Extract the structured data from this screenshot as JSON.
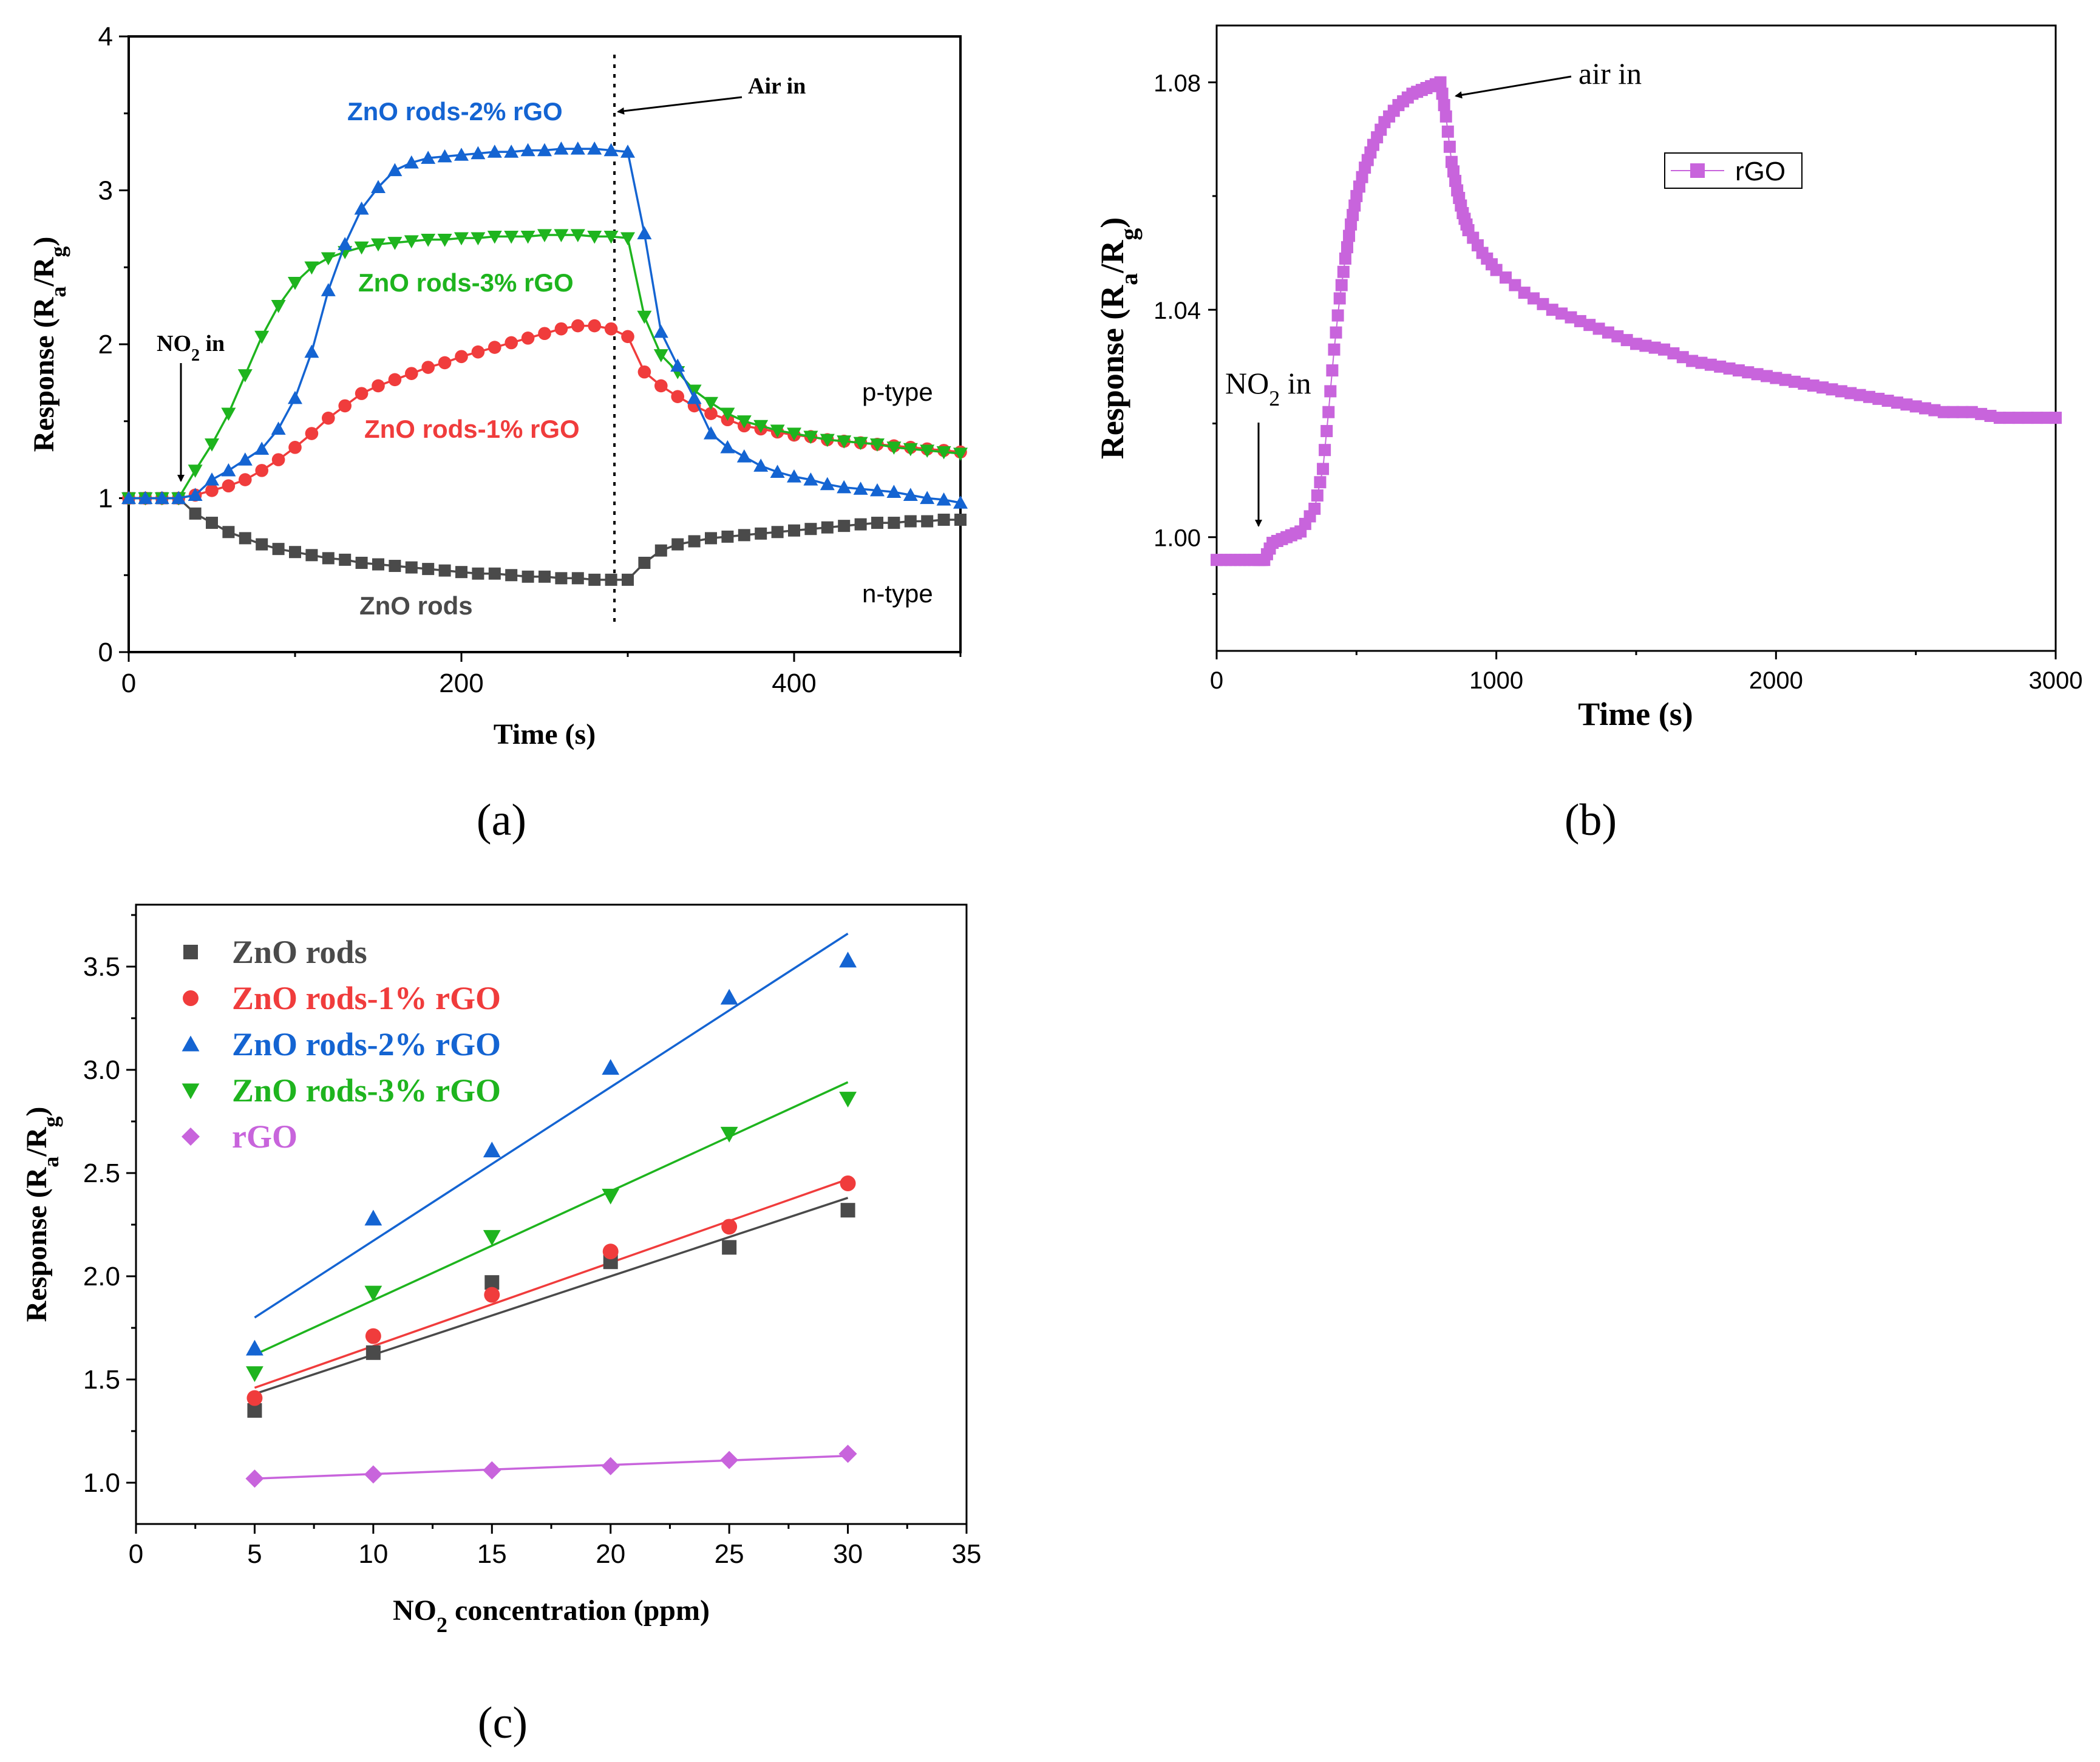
{
  "chart_data": [
    {
      "panel": "a",
      "panel_label": "(a)",
      "type": "line",
      "xlabel": "Time (s)",
      "ylabel": "Response (Ra/Rg)",
      "ylabel_parts": {
        "pre": "Response (R",
        "sub1": "a",
        "mid": "/R",
        "sub2": "g",
        "post": ")"
      },
      "xlim": [
        0,
        500
      ],
      "ylim": [
        0,
        4
      ],
      "xticks": [
        0,
        200,
        400
      ],
      "yticks": [
        0,
        1,
        2,
        3,
        4
      ],
      "vline_x": 292,
      "annotations": {
        "no2_in": {
          "pre": "NO",
          "sub": "2",
          "post": " in"
        },
        "air_in": "Air in",
        "p_type": "p-type",
        "n_type": "n-type"
      },
      "series": [
        {
          "name": "ZnO rods-2% rGO",
          "color": "#1464d2",
          "marker": "triangle-up",
          "x": [
            0,
            10,
            20,
            30,
            40,
            50,
            60,
            70,
            80,
            90,
            100,
            110,
            120,
            130,
            140,
            150,
            160,
            170,
            180,
            190,
            200,
            210,
            220,
            230,
            240,
            250,
            260,
            270,
            280,
            290,
            300,
            310,
            320,
            330,
            340,
            350,
            360,
            370,
            380,
            390,
            400,
            410,
            420,
            430,
            440,
            450,
            460,
            470,
            480,
            490,
            500
          ],
          "values": [
            1.0,
            1.0,
            1.0,
            1.0,
            1.02,
            1.12,
            1.18,
            1.25,
            1.32,
            1.45,
            1.65,
            1.95,
            2.35,
            2.65,
            2.88,
            3.02,
            3.13,
            3.18,
            3.21,
            3.22,
            3.23,
            3.24,
            3.25,
            3.25,
            3.26,
            3.26,
            3.27,
            3.27,
            3.27,
            3.26,
            3.25,
            2.72,
            2.08,
            1.86,
            1.65,
            1.42,
            1.33,
            1.27,
            1.21,
            1.17,
            1.14,
            1.12,
            1.09,
            1.07,
            1.06,
            1.05,
            1.04,
            1.02,
            1.0,
            0.99,
            0.97
          ]
        },
        {
          "name": "ZnO rods-3% rGO",
          "color": "#1eb41e",
          "marker": "triangle-down",
          "x": [
            0,
            10,
            20,
            30,
            40,
            50,
            60,
            70,
            80,
            90,
            100,
            110,
            120,
            130,
            140,
            150,
            160,
            170,
            180,
            190,
            200,
            210,
            220,
            230,
            240,
            250,
            260,
            270,
            280,
            290,
            300,
            310,
            320,
            330,
            340,
            350,
            360,
            370,
            380,
            390,
            400,
            410,
            420,
            430,
            440,
            450,
            460,
            470,
            480,
            490,
            500
          ],
          "values": [
            1.0,
            1.0,
            1.0,
            1.0,
            1.18,
            1.35,
            1.55,
            1.8,
            2.05,
            2.25,
            2.4,
            2.5,
            2.56,
            2.6,
            2.63,
            2.65,
            2.66,
            2.67,
            2.68,
            2.68,
            2.69,
            2.69,
            2.7,
            2.7,
            2.7,
            2.71,
            2.71,
            2.71,
            2.7,
            2.7,
            2.69,
            2.18,
            1.93,
            1.82,
            1.7,
            1.62,
            1.55,
            1.5,
            1.47,
            1.44,
            1.42,
            1.4,
            1.38,
            1.37,
            1.36,
            1.35,
            1.33,
            1.32,
            1.31,
            1.3,
            1.29
          ]
        },
        {
          "name": "ZnO rods-1% rGO",
          "color": "#f03c3c",
          "marker": "circle",
          "x": [
            0,
            10,
            20,
            30,
            40,
            50,
            60,
            70,
            80,
            90,
            100,
            110,
            120,
            130,
            140,
            150,
            160,
            170,
            180,
            190,
            200,
            210,
            220,
            230,
            240,
            250,
            260,
            270,
            280,
            290,
            300,
            310,
            320,
            330,
            340,
            350,
            360,
            370,
            380,
            390,
            400,
            410,
            420,
            430,
            440,
            450,
            460,
            470,
            480,
            490,
            500
          ],
          "values": [
            1.0,
            1.0,
            1.0,
            1.0,
            1.02,
            1.05,
            1.08,
            1.12,
            1.18,
            1.25,
            1.33,
            1.42,
            1.52,
            1.6,
            1.68,
            1.73,
            1.77,
            1.81,
            1.85,
            1.88,
            1.92,
            1.95,
            1.98,
            2.01,
            2.04,
            2.07,
            2.1,
            2.12,
            2.12,
            2.1,
            2.05,
            1.82,
            1.73,
            1.66,
            1.6,
            1.55,
            1.51,
            1.47,
            1.45,
            1.43,
            1.41,
            1.4,
            1.38,
            1.37,
            1.36,
            1.35,
            1.34,
            1.33,
            1.32,
            1.31,
            1.3
          ]
        },
        {
          "name": "ZnO rods",
          "color": "#4a4a4a",
          "marker": "square",
          "x": [
            0,
            10,
            20,
            30,
            40,
            50,
            60,
            70,
            80,
            90,
            100,
            110,
            120,
            130,
            140,
            150,
            160,
            170,
            180,
            190,
            200,
            210,
            220,
            230,
            240,
            250,
            260,
            270,
            280,
            290,
            300,
            310,
            320,
            330,
            340,
            350,
            360,
            370,
            380,
            390,
            400,
            410,
            420,
            430,
            440,
            450,
            460,
            470,
            480,
            490,
            500
          ],
          "values": [
            1.0,
            1.0,
            1.0,
            1.0,
            0.9,
            0.84,
            0.78,
            0.74,
            0.7,
            0.67,
            0.65,
            0.63,
            0.61,
            0.6,
            0.58,
            0.57,
            0.56,
            0.55,
            0.54,
            0.53,
            0.52,
            0.51,
            0.51,
            0.5,
            0.49,
            0.49,
            0.48,
            0.48,
            0.47,
            0.47,
            0.47,
            0.58,
            0.66,
            0.7,
            0.72,
            0.74,
            0.75,
            0.76,
            0.77,
            0.78,
            0.79,
            0.8,
            0.81,
            0.82,
            0.83,
            0.84,
            0.84,
            0.85,
            0.85,
            0.86,
            0.86
          ]
        }
      ]
    },
    {
      "panel": "b",
      "panel_label": "(b)",
      "type": "line",
      "xlabel": "Time (s)",
      "ylabel": "Response (Ra/Rg)",
      "ylabel_parts": {
        "pre": "Response (R",
        "sub1": "a",
        "mid": "/R",
        "sub2": "g",
        "post": ")"
      },
      "xlim": [
        0,
        3000
      ],
      "ylim": [
        0.98,
        1.09
      ],
      "xticks": [
        0,
        1000,
        2000,
        3000
      ],
      "yticks": [
        1.0,
        1.04,
        1.08
      ],
      "ytick_labels": [
        "1.00",
        "1.04",
        "1.08"
      ],
      "annotations": {
        "no2_in": {
          "pre": "NO",
          "sub": "2",
          "post": " in"
        },
        "air_in": "air in"
      },
      "legend": "rGO",
      "series": [
        {
          "name": "rGO",
          "color": "#c864dc",
          "marker": "square",
          "x": [
            0,
            50,
            100,
            150,
            170,
            200,
            250,
            300,
            350,
            380,
            400,
            420,
            440,
            460,
            480,
            500,
            530,
            560,
            600,
            650,
            700,
            750,
            800,
            820,
            840,
            860,
            880,
            900,
            950,
            1000,
            1100,
            1200,
            1300,
            1400,
            1500,
            1600,
            1700,
            1800,
            1900,
            2000,
            2100,
            2200,
            2300,
            2400,
            2500,
            2600,
            2700,
            2800,
            2900,
            3000
          ],
          "values": [
            0.996,
            0.996,
            0.996,
            0.996,
            0.996,
            0.999,
            1.0,
            1.001,
            1.005,
            1.012,
            1.022,
            1.033,
            1.042,
            1.049,
            1.055,
            1.06,
            1.065,
            1.069,
            1.073,
            1.076,
            1.078,
            1.079,
            1.08,
            1.074,
            1.066,
            1.061,
            1.057,
            1.054,
            1.05,
            1.047,
            1.043,
            1.04,
            1.038,
            1.036,
            1.034,
            1.033,
            1.031,
            1.03,
            1.029,
            1.028,
            1.027,
            1.026,
            1.025,
            1.024,
            1.023,
            1.022,
            1.022,
            1.021,
            1.021,
            1.021
          ]
        }
      ]
    },
    {
      "panel": "c",
      "panel_label": "(c)",
      "type": "scatter",
      "xlabel": "NO2 concentration (ppm)",
      "xlabel_parts": {
        "pre": "NO",
        "sub": "2",
        "post": " concentration (ppm)"
      },
      "ylabel": "Response (Ra/Rg)",
      "ylabel_parts": {
        "pre": "Response (R",
        "sub1": "a",
        "mid": "/R",
        "sub2": "g",
        "post": ")"
      },
      "xlim": [
        0,
        35
      ],
      "ylim": [
        0.8,
        3.8
      ],
      "xticks": [
        0,
        5,
        10,
        15,
        20,
        25,
        30,
        35
      ],
      "yticks": [
        1.0,
        1.5,
        2.0,
        2.5,
        3.0,
        3.5
      ],
      "ytick_labels": [
        "1.0",
        "1.5",
        "2.0",
        "2.5",
        "3.0",
        "3.5"
      ],
      "series": [
        {
          "name": "ZnO rods",
          "color": "#4a4a4a",
          "marker": "square",
          "x": [
            5,
            10,
            15,
            20,
            25,
            30
          ],
          "values": [
            1.35,
            1.63,
            1.97,
            2.07,
            2.14,
            2.32
          ],
          "fit": [
            1.43,
            2.38
          ]
        },
        {
          "name": "ZnO rods-1% rGO",
          "color": "#f03c3c",
          "marker": "circle",
          "x": [
            5,
            10,
            15,
            20,
            25,
            30
          ],
          "values": [
            1.41,
            1.71,
            1.91,
            2.12,
            2.24,
            2.45
          ],
          "fit": [
            1.46,
            2.47
          ]
        },
        {
          "name": "ZnO rods-2% rGO",
          "color": "#1464d2",
          "marker": "triangle-up",
          "x": [
            5,
            10,
            15,
            20,
            25,
            30
          ],
          "values": [
            1.65,
            2.28,
            2.61,
            3.01,
            3.35,
            3.53
          ],
          "fit": [
            1.8,
            3.66
          ]
        },
        {
          "name": "ZnO rods-3% rGO",
          "color": "#1eb41e",
          "marker": "triangle-down",
          "x": [
            5,
            10,
            15,
            20,
            25,
            30
          ],
          "values": [
            1.53,
            1.92,
            2.19,
            2.39,
            2.69,
            2.86
          ],
          "fit": [
            1.62,
            2.94
          ]
        },
        {
          "name": "rGO",
          "color": "#c864dc",
          "marker": "diamond",
          "x": [
            5,
            10,
            15,
            20,
            25,
            30
          ],
          "values": [
            1.02,
            1.04,
            1.06,
            1.08,
            1.11,
            1.14
          ],
          "fit": [
            1.02,
            1.13
          ]
        }
      ]
    }
  ]
}
